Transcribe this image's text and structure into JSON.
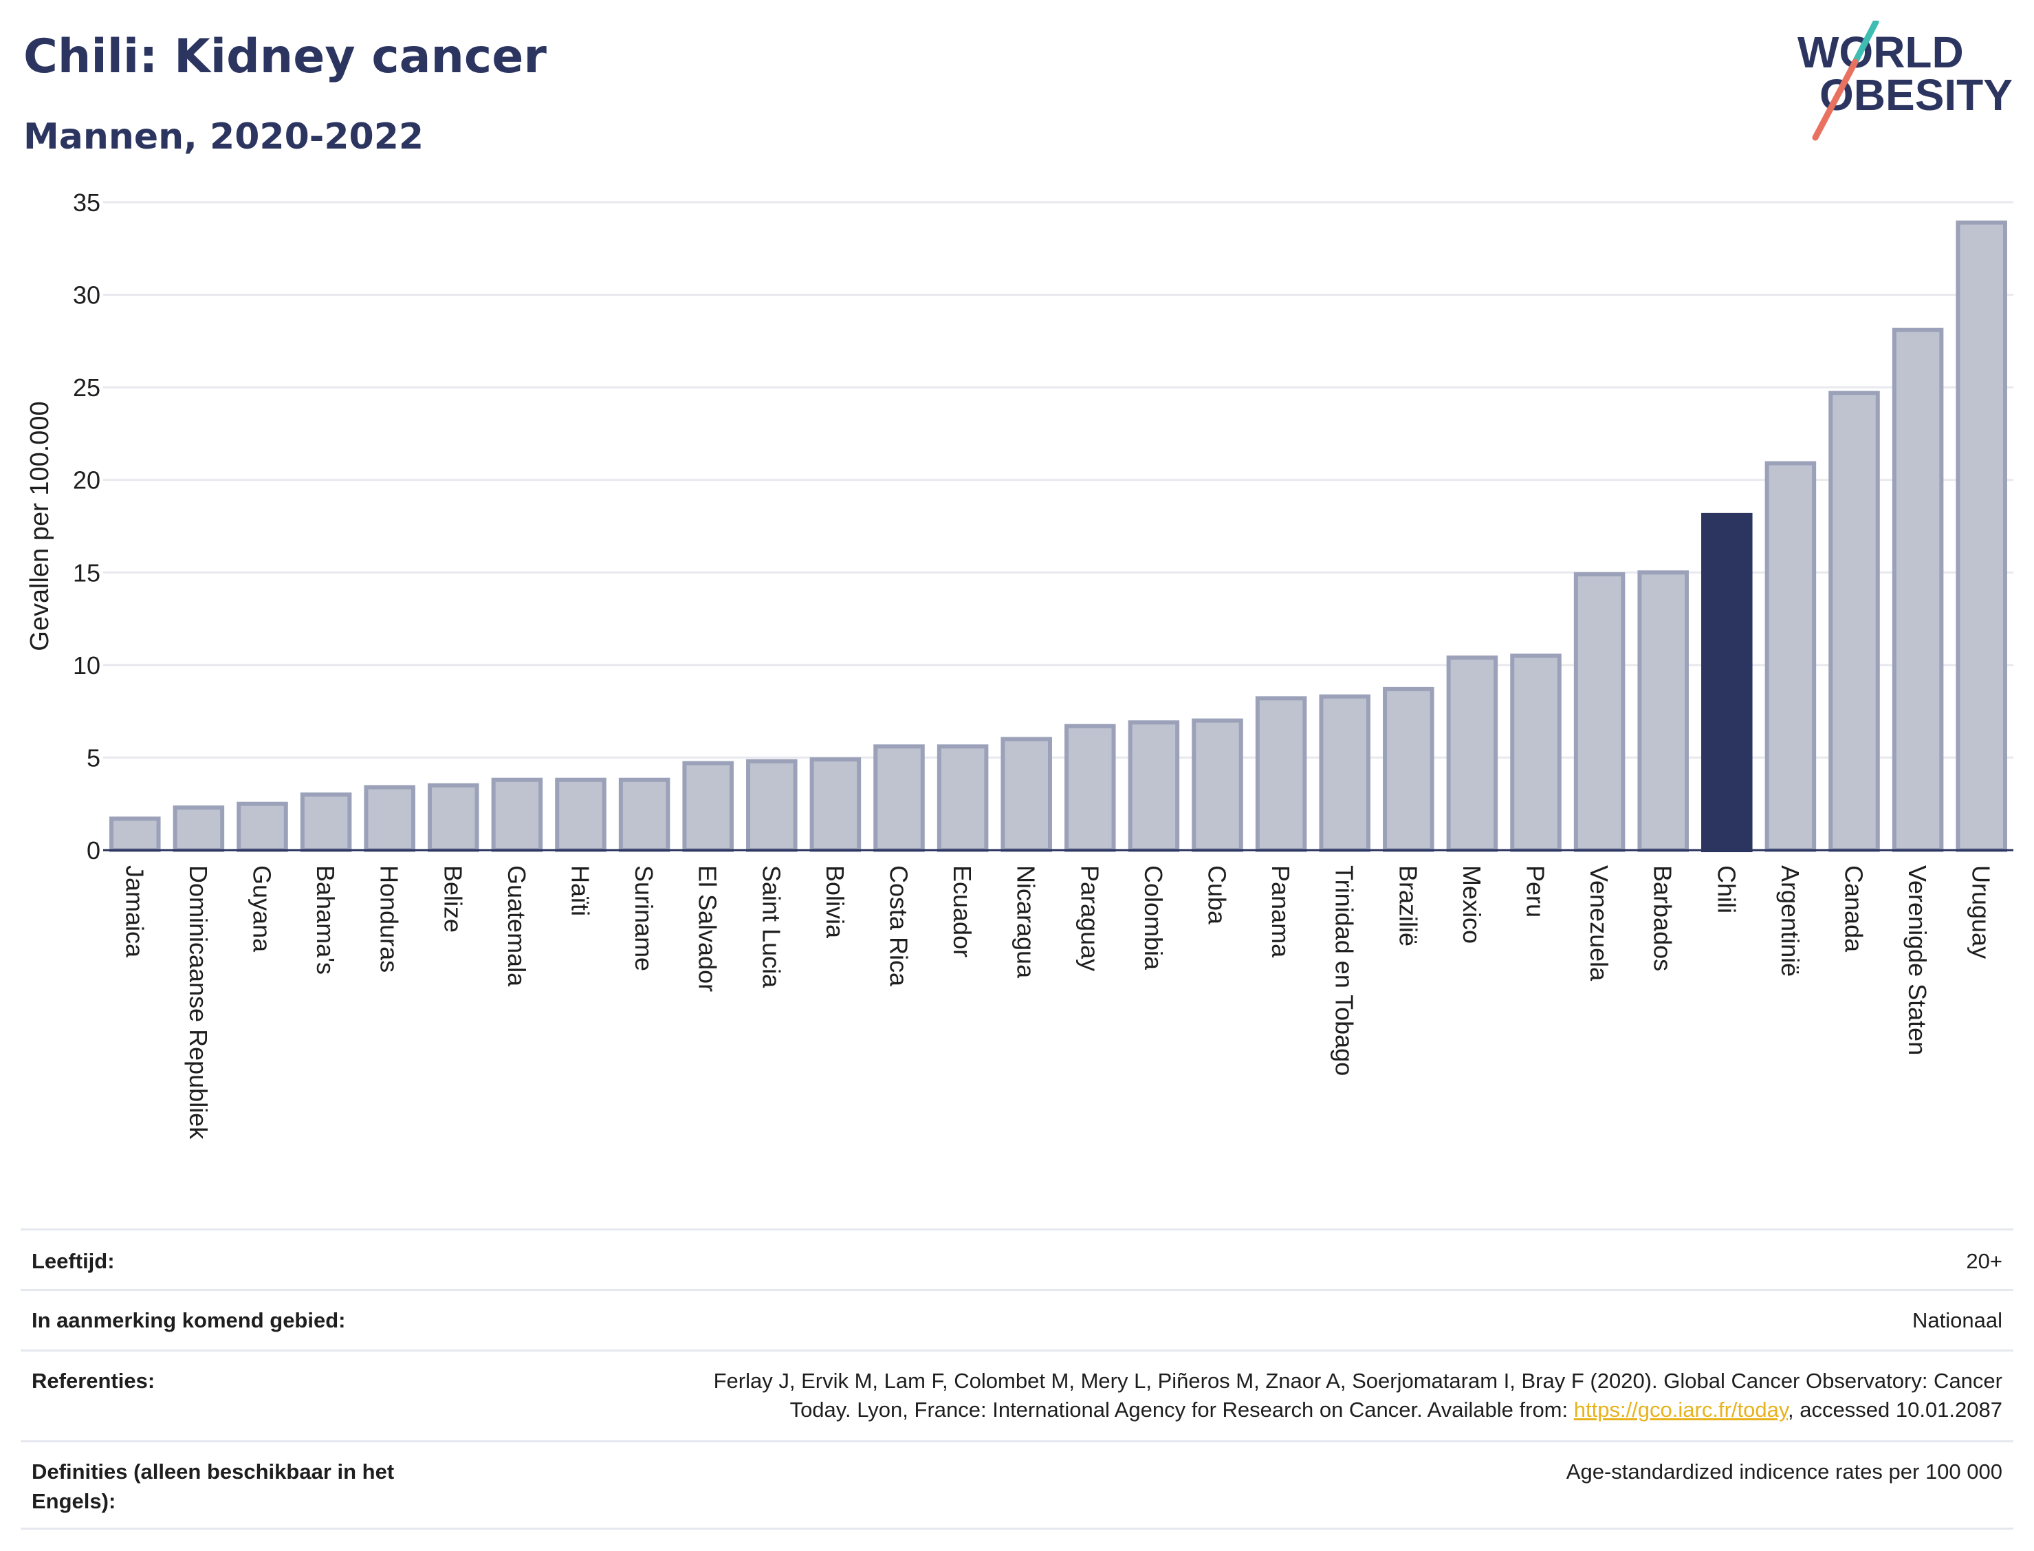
{
  "header": {
    "title": "Chili: Kidney cancer",
    "subtitle": "Mannen, 2020-2022"
  },
  "logo": {
    "line1": "WORLD",
    "line2": "OBESITY"
  },
  "colors": {
    "bar": "#bfc3d0",
    "bar_border": "#9ba1b8",
    "highlight": "#2b3560",
    "grid": "#e8e9ef",
    "logo_teal": "#3ebdb3",
    "logo_coral": "#e8715f"
  },
  "chart_data": {
    "type": "bar",
    "ylabel": "Gevallen per 100.000",
    "ylim": [
      0,
      35
    ],
    "yticks": [
      0,
      5,
      10,
      15,
      20,
      25,
      30,
      35
    ],
    "grid": true,
    "highlight": "Chili",
    "categories": [
      "Jamaica",
      "Dominicaanse Republiek",
      "Guyana",
      "Bahama's",
      "Honduras",
      "Belize",
      "Guatemala",
      "Haïti",
      "Suriname",
      "El Salvador",
      "Saint Lucia",
      "Bolivia",
      "Costa Rica",
      "Ecuador",
      "Nicaragua",
      "Paraguay",
      "Colombia",
      "Cuba",
      "Panama",
      "Trinidad en Tobago",
      "Brazilië",
      "Mexico",
      "Peru",
      "Venezuela",
      "Barbados",
      "Chili",
      "Argentinië",
      "Canada",
      "Verenigde Staten",
      "Uruguay"
    ],
    "values": [
      1.7,
      2.3,
      2.5,
      3.0,
      3.4,
      3.5,
      3.8,
      3.8,
      3.8,
      4.7,
      4.8,
      4.9,
      5.6,
      5.6,
      6.0,
      6.7,
      6.9,
      7.0,
      8.2,
      8.3,
      8.7,
      10.4,
      10.5,
      14.9,
      15.0,
      18.1,
      20.9,
      24.7,
      28.1,
      33.9
    ]
  },
  "info": {
    "age_label": "Leeftijd:",
    "age_value": "20+",
    "area_label": "In aanmerking komend gebied:",
    "area_value": "Nationaal",
    "ref_label": "Referenties:",
    "ref_line1": "Ferlay J, Ervik M, Lam F, Colombet M, Mery L, Piñeros M, Znaor A, Soerjomataram I, Bray F (2020). Global Cancer Observatory: Cancer",
    "ref_line2_before": "Today. Lyon, France: International Agency for Research on Cancer. Available from: ",
    "ref_link": "https://gco.iarc.fr/today",
    "ref_line2_after": ", accessed 10.01.2087",
    "def_label": "Definities (alleen beschikbaar in het Engels):",
    "def_value": "Age-standardized indicence rates per 100 000"
  }
}
